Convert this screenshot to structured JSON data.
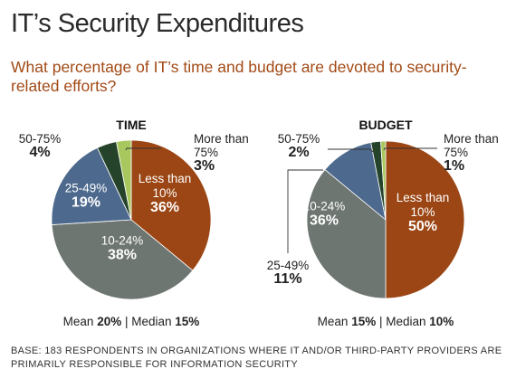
{
  "header": {
    "title": "IT’s Security Expenditures",
    "subtitle": "What percentage of IT’s time and budget are devoted to security-related efforts?"
  },
  "colors": {
    "less_than_10": "#9b4614",
    "10_24": "#6e7671",
    "25_49": "#4d6a8e",
    "50_75": "#25432a",
    "more_than_75": "#a8c85f"
  },
  "chart_data": [
    {
      "type": "pie",
      "title": "TIME",
      "slices": [
        {
          "label": "Less than 10%",
          "value": 36,
          "value_label": "36%",
          "color": "#9b4614"
        },
        {
          "label": "10-24%",
          "value": 38,
          "value_label": "38%",
          "color": "#6e7671"
        },
        {
          "label": "25-49%",
          "value": 19,
          "value_label": "19%",
          "color": "#4d6a8e"
        },
        {
          "label": "50-75%",
          "value": 4,
          "value_label": "4%",
          "color": "#25432a"
        },
        {
          "label": "More than 75%",
          "value": 3,
          "value_label": "3%",
          "color": "#a8c85f"
        }
      ],
      "mean_label": "Mean",
      "mean_value": "20%",
      "median_label": "Median",
      "median_value": "15%"
    },
    {
      "type": "pie",
      "title": "BUDGET",
      "slices": [
        {
          "label": "Less than 10%",
          "value": 50,
          "value_label": "50%",
          "color": "#9b4614"
        },
        {
          "label": "10-24%",
          "value": 36,
          "value_label": "36%",
          "color": "#6e7671"
        },
        {
          "label": "25-49%",
          "value": 11,
          "value_label": "11%",
          "color": "#4d6a8e"
        },
        {
          "label": "50-75%",
          "value": 2,
          "value_label": "2%",
          "color": "#25432a"
        },
        {
          "label": "More than 75%",
          "value": 1,
          "value_label": "1%",
          "color": "#a8c85f"
        }
      ],
      "mean_label": "Mean",
      "mean_value": "15%",
      "median_label": "Median",
      "median_value": "10%"
    }
  ],
  "footnote": "BASE: 183 RESPONDENTS IN ORGANIZATIONS WHERE IT AND/OR THIRD-PARTY PROVIDERS ARE PRIMARILY RESPONSIBLE FOR INFORMATION SECURITY"
}
